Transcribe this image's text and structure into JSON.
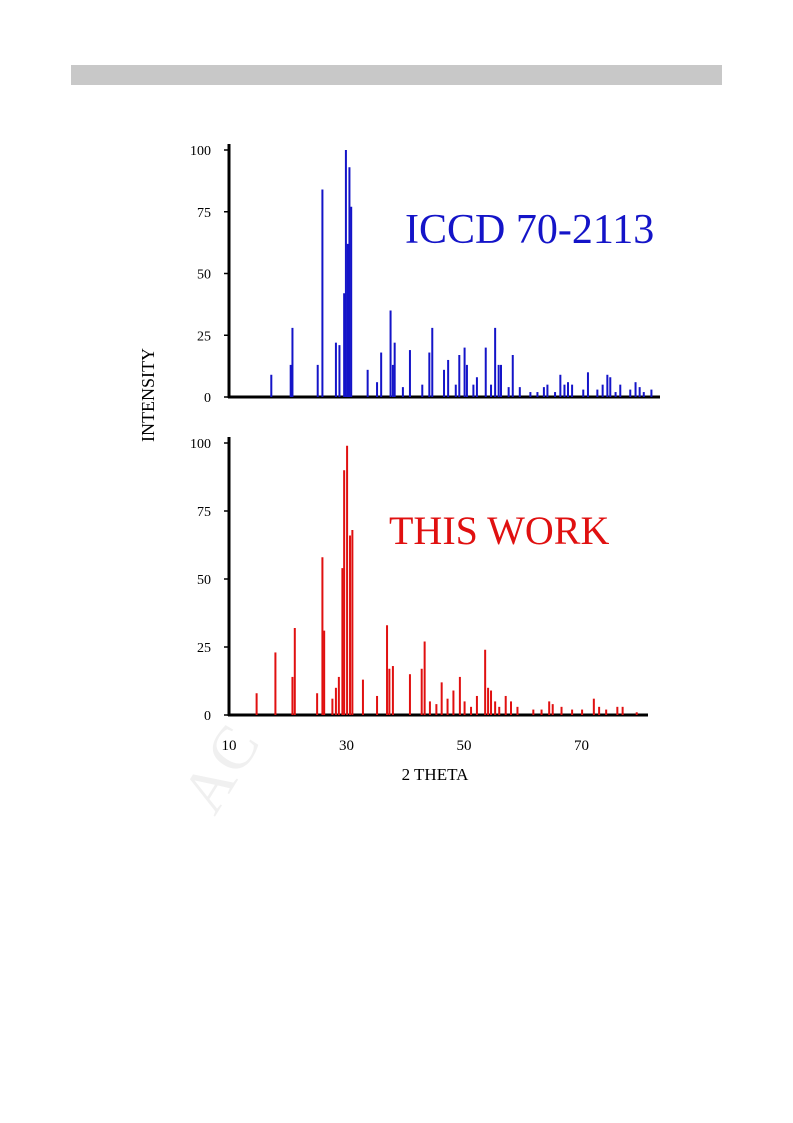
{
  "header": {
    "bar_color": "#c8c8c8"
  },
  "watermark": {
    "text": "AC"
  },
  "chart_data": {
    "type": "bar",
    "ylabel": "INTENSITY",
    "xlabel": "2 THETA",
    "x_ticks": [
      10,
      30,
      50,
      70
    ],
    "y_ticks": [
      0,
      25,
      50,
      75,
      100
    ],
    "xlim": [
      10,
      82
    ],
    "ylim": [
      0,
      100
    ],
    "panels": [
      {
        "id": "top",
        "label": "ICCD 70-2113",
        "color": "#1414c8",
        "peaks": [
          [
            17.2,
            9
          ],
          [
            20.5,
            13
          ],
          [
            20.8,
            28
          ],
          [
            25.1,
            13
          ],
          [
            25.9,
            84
          ],
          [
            28.2,
            22
          ],
          [
            28.8,
            21
          ],
          [
            29.6,
            42
          ],
          [
            29.9,
            100
          ],
          [
            30.2,
            62
          ],
          [
            30.5,
            93
          ],
          [
            30.8,
            77
          ],
          [
            33.6,
            11
          ],
          [
            35.2,
            6
          ],
          [
            35.9,
            18
          ],
          [
            37.5,
            35
          ],
          [
            37.9,
            13
          ],
          [
            38.2,
            22
          ],
          [
            39.6,
            4
          ],
          [
            40.8,
            19
          ],
          [
            42.9,
            5
          ],
          [
            44.1,
            18
          ],
          [
            44.6,
            28
          ],
          [
            46.6,
            11
          ],
          [
            47.3,
            15
          ],
          [
            48.6,
            5
          ],
          [
            49.2,
            17
          ],
          [
            50.1,
            20
          ],
          [
            50.5,
            13
          ],
          [
            51.6,
            5
          ],
          [
            52.2,
            8
          ],
          [
            53.7,
            20
          ],
          [
            54.6,
            5
          ],
          [
            55.3,
            28
          ],
          [
            55.9,
            13
          ],
          [
            56.3,
            13
          ],
          [
            57.6,
            4
          ],
          [
            58.3,
            17
          ],
          [
            59.5,
            4
          ],
          [
            61.3,
            2
          ],
          [
            62.5,
            2
          ],
          [
            63.6,
            4
          ],
          [
            64.2,
            5
          ],
          [
            65.5,
            2
          ],
          [
            66.4,
            9
          ],
          [
            67.1,
            5
          ],
          [
            67.7,
            6
          ],
          [
            68.4,
            5
          ],
          [
            70.3,
            3
          ],
          [
            71.1,
            10
          ],
          [
            72.7,
            3
          ],
          [
            73.6,
            5
          ],
          [
            74.4,
            9
          ],
          [
            74.9,
            8
          ],
          [
            75.8,
            2
          ],
          [
            76.6,
            5
          ],
          [
            78.3,
            3
          ],
          [
            79.2,
            6
          ],
          [
            79.9,
            4
          ],
          [
            80.6,
            2
          ],
          [
            81.9,
            3
          ]
        ]
      },
      {
        "id": "bottom",
        "label": "THIS WORK",
        "color": "#e01010",
        "peaks": [
          [
            14.7,
            8
          ],
          [
            17.9,
            23
          ],
          [
            20.8,
            14
          ],
          [
            21.2,
            32
          ],
          [
            25.0,
            8
          ],
          [
            25.9,
            58
          ],
          [
            26.2,
            31
          ],
          [
            27.6,
            6
          ],
          [
            28.2,
            10
          ],
          [
            28.7,
            14
          ],
          [
            29.3,
            54
          ],
          [
            29.6,
            90
          ],
          [
            30.1,
            99
          ],
          [
            30.6,
            66
          ],
          [
            31.0,
            68
          ],
          [
            32.8,
            13
          ],
          [
            35.2,
            7
          ],
          [
            36.9,
            33
          ],
          [
            37.3,
            17
          ],
          [
            37.9,
            18
          ],
          [
            40.8,
            15
          ],
          [
            42.8,
            17
          ],
          [
            43.3,
            27
          ],
          [
            44.2,
            5
          ],
          [
            45.3,
            4
          ],
          [
            46.2,
            12
          ],
          [
            47.2,
            6
          ],
          [
            48.2,
            9
          ],
          [
            49.3,
            14
          ],
          [
            50.1,
            5
          ],
          [
            51.2,
            3
          ],
          [
            52.2,
            7
          ],
          [
            53.6,
            24
          ],
          [
            54.1,
            10
          ],
          [
            54.6,
            9
          ],
          [
            55.3,
            5
          ],
          [
            56.0,
            3
          ],
          [
            57.1,
            7
          ],
          [
            58.0,
            5
          ],
          [
            59.1,
            3
          ],
          [
            61.8,
            2
          ],
          [
            63.2,
            2
          ],
          [
            64.5,
            5
          ],
          [
            65.1,
            4
          ],
          [
            66.6,
            3
          ],
          [
            68.4,
            2
          ],
          [
            70.1,
            2
          ],
          [
            72.1,
            6
          ],
          [
            73.0,
            3
          ],
          [
            74.2,
            2
          ],
          [
            76.1,
            3
          ],
          [
            77.0,
            3
          ],
          [
            79.4,
            1
          ]
        ]
      }
    ]
  }
}
